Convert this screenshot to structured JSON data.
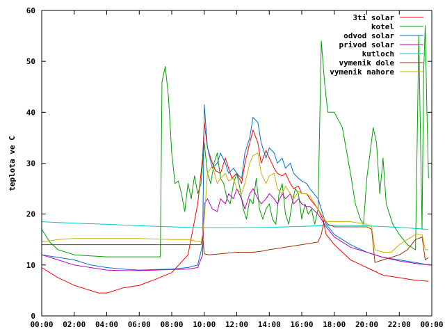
{
  "chart_data": {
    "type": "line",
    "title": "",
    "xlabel": "",
    "ylabel": "teplota ve C",
    "xlim": [
      0,
      24
    ],
    "ylim": [
      0,
      60
    ],
    "x_ticks": [
      "00:00",
      "02:00",
      "04:00",
      "06:00",
      "08:00",
      "10:00",
      "12:00",
      "14:00",
      "16:00",
      "18:00",
      "20:00",
      "22:00",
      "00:00"
    ],
    "y_ticks": [
      "0",
      "10",
      "20",
      "30",
      "40",
      "50",
      "60"
    ],
    "legend_position": "top-right",
    "grid": false,
    "series": [
      {
        "name": "3ti solar",
        "color": "#ff0000",
        "x": [
          0,
          1,
          2,
          3,
          3.5,
          4,
          5,
          6,
          7,
          8,
          9,
          9.6,
          9.9,
          10.0,
          10.2,
          10.5,
          10.7,
          11,
          11.3,
          11.5,
          11.7,
          12,
          12.3,
          12.5,
          12.8,
          13,
          13.3,
          13.5,
          13.8,
          14,
          14.3,
          14.5,
          14.8,
          15,
          15.3,
          15.5,
          15.8,
          16,
          16.3,
          16.5,
          17,
          17.3,
          17.5,
          18,
          18.5,
          19,
          20,
          21,
          22,
          23,
          23.8
        ],
        "y": [
          9.5,
          7.5,
          6,
          5,
          4.5,
          4.5,
          5.5,
          6,
          7.2,
          8.5,
          12,
          22,
          31,
          38,
          33,
          30,
          28.5,
          28,
          31,
          29,
          27,
          28,
          26,
          30,
          34,
          36.5,
          34,
          30,
          32.5,
          31,
          29,
          28,
          27.5,
          28,
          26,
          25,
          25.5,
          24,
          24,
          23,
          21,
          19,
          16,
          14,
          12.5,
          11,
          9.5,
          8,
          7.5,
          7,
          6.8
        ]
      },
      {
        "name": "kotel",
        "color": "#00a000",
        "x": [
          0,
          0.5,
          1,
          2,
          3,
          4,
          5,
          6,
          7,
          7.3,
          7.4,
          7.6,
          7.8,
          8.0,
          8.2,
          8.4,
          8.6,
          8.8,
          9.0,
          9.2,
          9.4,
          9.6,
          9.8,
          10.0,
          10.2,
          10.4,
          10.6,
          10.8,
          11.0,
          11.2,
          11.4,
          11.6,
          11.8,
          12.0,
          12.2,
          12.4,
          12.6,
          12.8,
          13.0,
          13.2,
          13.4,
          13.6,
          13.8,
          14.0,
          14.2,
          14.4,
          14.6,
          14.8,
          15.0,
          15.2,
          15.4,
          15.6,
          15.8,
          16.0,
          16.2,
          16.4,
          16.6,
          16.8,
          17.0,
          17.2,
          17.4,
          17.6,
          17.8,
          18.0,
          18.5,
          19,
          19.3,
          19.6,
          19.8,
          20.0,
          20.2,
          20.4,
          20.6,
          20.8,
          21.0,
          21.2,
          21.4,
          21.6,
          21.8,
          22,
          22.5,
          23,
          23.2,
          23.4,
          23.5,
          23.6,
          23.7,
          23.8
        ],
        "y": [
          17,
          14.5,
          13,
          12,
          11.8,
          11.6,
          11.6,
          11.6,
          11.6,
          11.6,
          46,
          49,
          43,
          32,
          26,
          26.5,
          24,
          20.5,
          26,
          23,
          27.5,
          24,
          26,
          34,
          28,
          26,
          30,
          32,
          27,
          26,
          23,
          22,
          26,
          28,
          25,
          21,
          19,
          23,
          22,
          27,
          21,
          19,
          21,
          22,
          19,
          18,
          24,
          26,
          20,
          18,
          22,
          25,
          24,
          19,
          22,
          20,
          21,
          18,
          21,
          54,
          46,
          40,
          40,
          40,
          37,
          28,
          22,
          19,
          18,
          27,
          32,
          37,
          34,
          24,
          31,
          22,
          20,
          18,
          17,
          16,
          14,
          13,
          55,
          17,
          48,
          57,
          40,
          27
        ]
      },
      {
        "name": "odvod solar",
        "color": "#0070d0",
        "x": [
          0,
          1,
          2,
          3,
          4,
          5,
          6,
          7,
          8,
          9,
          9.6,
          9.9,
          10.0,
          10.2,
          10.5,
          10.8,
          11,
          11.3,
          11.5,
          11.8,
          12,
          12.3,
          12.5,
          12.8,
          13,
          13.3,
          13.5,
          13.8,
          14,
          14.3,
          14.5,
          14.8,
          15,
          15.3,
          15.5,
          15.8,
          16,
          16.3,
          16.5,
          17,
          17.3,
          17.5,
          18,
          18.5,
          19,
          20,
          21,
          22,
          23,
          23.8
        ],
        "y": [
          12,
          11.5,
          11,
          10,
          9.5,
          9.2,
          9.0,
          9.1,
          9.2,
          9.5,
          10,
          14,
          41.5,
          33,
          29,
          30,
          32,
          30,
          28,
          29,
          28,
          27,
          32,
          35,
          39,
          38,
          34,
          31,
          33,
          32,
          30,
          31,
          29,
          30,
          28,
          27,
          26.5,
          26,
          25,
          23,
          20,
          18,
          16,
          15,
          14,
          12.5,
          11.5,
          11,
          10.5,
          10
        ]
      },
      {
        "name": "privod solar",
        "color": "#c000c0",
        "x": [
          0,
          1,
          2,
          3,
          4,
          5,
          6,
          7,
          8,
          9,
          9.6,
          9.9,
          10.0,
          10.2,
          10.5,
          10.8,
          11,
          11.3,
          11.5,
          11.8,
          12,
          12.3,
          12.5,
          12.8,
          13,
          13.3,
          13.5,
          13.8,
          14,
          14.3,
          14.5,
          14.8,
          15,
          15.3,
          15.5,
          15.8,
          16,
          16.3,
          16.5,
          17,
          17.3,
          17.5,
          18,
          18.5,
          19,
          20,
          21,
          22,
          23,
          23.8
        ],
        "y": [
          12,
          11,
          10,
          9.5,
          9,
          8.9,
          8.9,
          9.0,
          9.1,
          9.2,
          9.5,
          12,
          22,
          23,
          21,
          20.5,
          23,
          22,
          24,
          23,
          25,
          23,
          21,
          24,
          25,
          23,
          22,
          23,
          24,
          23,
          22,
          24,
          23,
          24,
          22,
          23,
          22,
          21.5,
          21.5,
          20,
          18.5,
          17.5,
          15.5,
          14.5,
          13.5,
          12.5,
          11.5,
          10.8,
          10.3,
          10
        ]
      },
      {
        "name": "kutloch",
        "color": "#00c8c8",
        "x": [
          0,
          2,
          4,
          6,
          8,
          10,
          12,
          14,
          16,
          18,
          20,
          22,
          23.8
        ],
        "y": [
          18.5,
          18.2,
          18,
          17.7,
          17.5,
          17.3,
          17.3,
          17.4,
          17.6,
          17.8,
          17.7,
          17.4,
          17.0
        ]
      },
      {
        "name": "vymenik dole",
        "color": "#a03000",
        "x": [
          0,
          1,
          2,
          3,
          4,
          5,
          6,
          7,
          8,
          9,
          9.8,
          9.9,
          10.0,
          10.3,
          11,
          12,
          13,
          13.5,
          14,
          15,
          16,
          17,
          17.2,
          17.4,
          17.6,
          18,
          18.5,
          19,
          20,
          20.3,
          20.5,
          21,
          21.5,
          22,
          22.5,
          23,
          23.4,
          23.6,
          23.8
        ],
        "y": [
          14,
          14,
          14,
          14,
          14,
          14,
          14,
          14,
          14,
          14,
          14,
          16,
          12.2,
          12,
          12.2,
          12.5,
          12.5,
          12.7,
          13,
          13.5,
          14,
          14.5,
          16,
          19,
          18,
          17.5,
          17.5,
          17.5,
          17.5,
          17,
          10.5,
          11,
          11.5,
          12,
          13,
          15,
          15.5,
          11,
          11.5
        ]
      },
      {
        "name": "vymenik nahore",
        "color": "#c8b400",
        "x": [
          0,
          1,
          2,
          3,
          4,
          5,
          6,
          7,
          8,
          9,
          9.8,
          9.9,
          10.0,
          10.2,
          10.5,
          10.8,
          11,
          11.3,
          11.5,
          11.8,
          12,
          12.3,
          12.5,
          12.8,
          13,
          13.3,
          13.5,
          13.8,
          14,
          14.3,
          14.5,
          14.8,
          15,
          15.3,
          15.5,
          15.8,
          16,
          16.3,
          16.5,
          17,
          17.3,
          17.5,
          18,
          18.5,
          19,
          20,
          20.3,
          20.5,
          21,
          21.5,
          22,
          22.5,
          23,
          23.4,
          23.6,
          23.8
        ],
        "y": [
          14.5,
          15,
          15.2,
          15.2,
          15.2,
          15.2,
          15.2,
          15.1,
          15,
          15,
          14.5,
          16,
          19,
          28,
          29.5,
          26,
          27,
          28,
          26.5,
          27,
          25,
          24,
          26,
          30,
          31.5,
          32,
          28,
          26,
          27.5,
          28,
          25,
          24,
          25.5,
          24,
          23,
          24.5,
          24,
          24,
          23.5,
          21,
          19.5,
          18.5,
          18.5,
          18.5,
          18.5,
          18,
          17.5,
          13,
          12.5,
          12.5,
          14,
          15,
          16,
          16,
          13,
          13
        ]
      }
    ]
  }
}
